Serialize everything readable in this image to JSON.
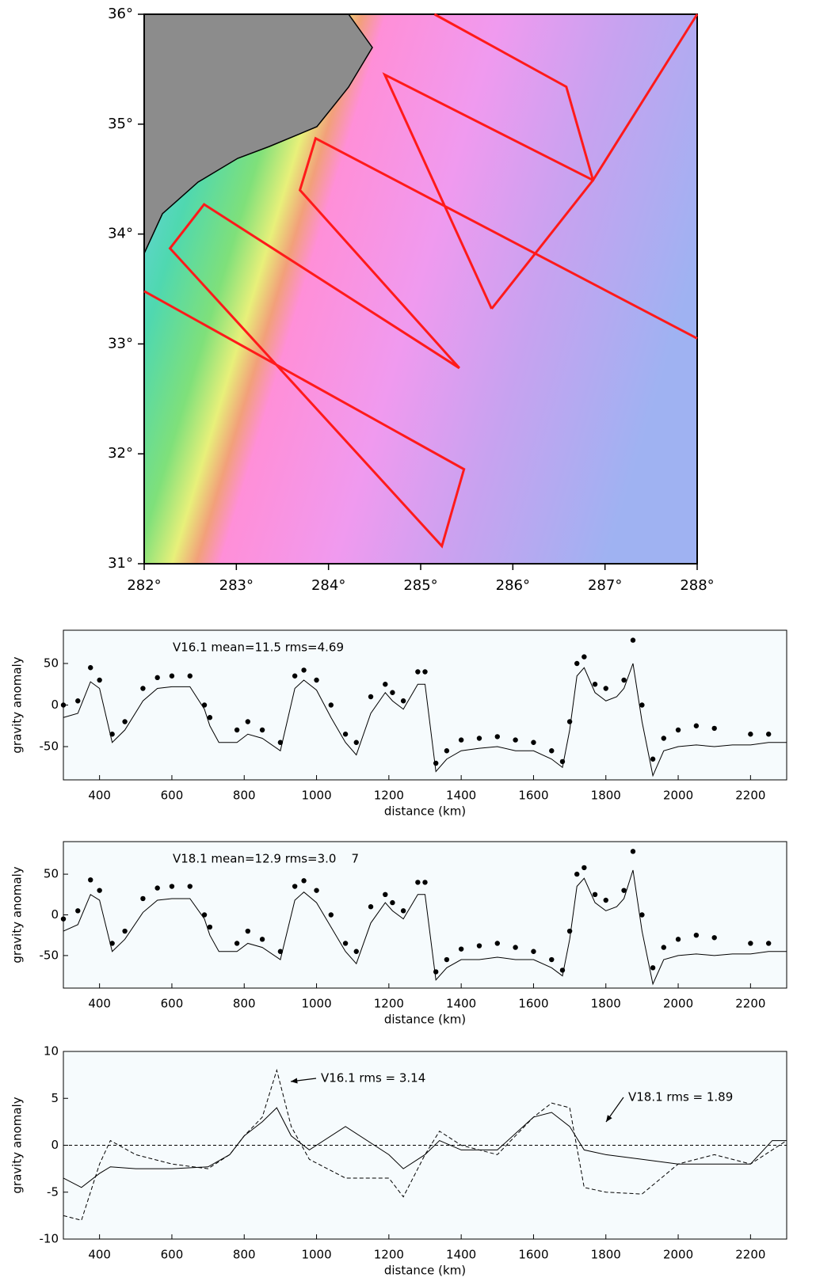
{
  "chart_data": [
    {
      "type": "map",
      "xlim": [
        282,
        288
      ],
      "ylim": [
        31,
        36
      ],
      "xticks": [
        {
          "value": 282,
          "label": "282°"
        },
        {
          "value": 283,
          "label": "283°"
        },
        {
          "value": 284,
          "label": "284°"
        },
        {
          "value": 285,
          "label": "285°"
        },
        {
          "value": 286,
          "label": "286°"
        },
        {
          "value": 287,
          "label": "287°"
        },
        {
          "value": 288,
          "label": "288°"
        }
      ],
      "yticks": [
        {
          "value": 31,
          "label": "31°"
        },
        {
          "value": 32,
          "label": "32°"
        },
        {
          "value": 33,
          "label": "33°"
        },
        {
          "value": 34,
          "label": "34°"
        },
        {
          "value": 35,
          "label": "35°"
        },
        {
          "value": 36,
          "label": "36°"
        }
      ],
      "track_color": "#ff1a1a",
      "tracks": [
        {
          "x": [
            282.0,
            285.47,
            285.23,
            282.28,
            282.65,
            285.42
          ],
          "y": [
            33.48,
            31.86,
            31.16,
            33.87,
            34.27,
            32.78
          ]
        },
        {
          "x": [
            285.42,
            283.69,
            283.86,
            288.0
          ],
          "y": [
            32.78,
            34.4,
            34.87,
            33.05
          ]
        },
        {
          "x": [
            285.77,
            284.61,
            286.87,
            288.0
          ],
          "y": [
            33.32,
            35.45,
            34.49,
            36.0
          ]
        },
        {
          "x": [
            285.15,
            286.58,
            286.87,
            285.77
          ],
          "y": [
            36.0,
            35.34,
            34.49,
            33.32
          ]
        }
      ]
    },
    {
      "type": "line",
      "text": "V16.1 mean=11.5 rms=4.69",
      "xlabel": "distance (km)",
      "ylabel": "gravity anomaly",
      "xlim": [
        300,
        2300
      ],
      "ylim": [
        -90,
        90
      ],
      "xticks": [
        400,
        600,
        800,
        1000,
        1200,
        1400,
        1600,
        1800,
        2000,
        2200
      ],
      "yticks": [
        -50,
        0,
        50
      ],
      "x": [
        300,
        340,
        375,
        400,
        435,
        470,
        520,
        560,
        600,
        650,
        690,
        705,
        730,
        780,
        810,
        850,
        900,
        940,
        965,
        1000,
        1040,
        1080,
        1110,
        1150,
        1190,
        1210,
        1240,
        1280,
        1300,
        1330,
        1360,
        1400,
        1450,
        1500,
        1550,
        1600,
        1650,
        1680,
        1700,
        1720,
        1740,
        1770,
        1800,
        1830,
        1850,
        1875,
        1900,
        1930,
        1960,
        2000,
        2050,
        2100,
        2150,
        2200,
        2250,
        2300
      ],
      "series": [
        {
          "style": "dots",
          "color": "#000000",
          "values": [
            0,
            5,
            45,
            30,
            -35,
            -20,
            20,
            33,
            35,
            35,
            0,
            -15,
            null,
            -30,
            -20,
            -30,
            -45,
            35,
            42,
            30,
            0,
            -35,
            -45,
            10,
            25,
            15,
            5,
            40,
            40,
            -70,
            -55,
            -42,
            -40,
            -38,
            -42,
            -45,
            -55,
            -68,
            -20,
            50,
            58,
            25,
            20,
            null,
            30,
            78,
            0,
            -65,
            -40,
            -30,
            -25,
            -28,
            null,
            -35,
            -35,
            null
          ]
        },
        {
          "style": "solid",
          "color": "#000000",
          "values": [
            -15,
            -10,
            28,
            20,
            -45,
            -30,
            5,
            20,
            22,
            22,
            -5,
            -25,
            -45,
            -45,
            -35,
            -40,
            -55,
            20,
            30,
            18,
            -15,
            -45,
            -60,
            -10,
            15,
            5,
            -5,
            25,
            25,
            -80,
            -65,
            -55,
            -52,
            -50,
            -55,
            -55,
            -65,
            -75,
            -30,
            35,
            45,
            15,
            5,
            10,
            20,
            50,
            -20,
            -85,
            -55,
            -50,
            -48,
            -50,
            -48,
            -48,
            -45,
            -45
          ]
        }
      ]
    },
    {
      "type": "line",
      "text": "V18.1 mean=12.9 rms=3.0    7",
      "xlabel": "distance (km)",
      "ylabel": "gravity anomaly",
      "xlim": [
        300,
        2300
      ],
      "ylim": [
        -90,
        90
      ],
      "xticks": [
        400,
        600,
        800,
        1000,
        1200,
        1400,
        1600,
        1800,
        2000,
        2200
      ],
      "yticks": [
        -50,
        0,
        50
      ],
      "x": [
        300,
        340,
        375,
        400,
        435,
        470,
        520,
        560,
        600,
        650,
        690,
        705,
        730,
        780,
        810,
        850,
        900,
        940,
        965,
        1000,
        1040,
        1080,
        1110,
        1150,
        1190,
        1210,
        1240,
        1280,
        1300,
        1330,
        1360,
        1400,
        1450,
        1500,
        1550,
        1600,
        1650,
        1680,
        1700,
        1720,
        1740,
        1770,
        1800,
        1830,
        1850,
        1875,
        1900,
        1930,
        1960,
        2000,
        2050,
        2100,
        2150,
        2200,
        2250,
        2300
      ],
      "series": [
        {
          "style": "dots",
          "color": "#000000",
          "values": [
            -5,
            5,
            43,
            30,
            -35,
            -20,
            20,
            33,
            35,
            35,
            0,
            -15,
            null,
            -35,
            -20,
            -30,
            -45,
            35,
            42,
            30,
            0,
            -35,
            -45,
            10,
            25,
            15,
            5,
            40,
            40,
            -70,
            -55,
            -42,
            -38,
            -35,
            -40,
            -45,
            -55,
            -68,
            -20,
            50,
            58,
            25,
            18,
            null,
            30,
            78,
            0,
            -65,
            -40,
            -30,
            -25,
            -28,
            null,
            -35,
            -35,
            null
          ]
        },
        {
          "style": "solid",
          "color": "#000000",
          "values": [
            -20,
            -12,
            25,
            18,
            -45,
            -30,
            3,
            18,
            20,
            20,
            -5,
            -25,
            -45,
            -45,
            -35,
            -40,
            -55,
            18,
            28,
            15,
            -15,
            -45,
            -60,
            -10,
            15,
            5,
            -5,
            25,
            25,
            -80,
            -65,
            -55,
            -55,
            -52,
            -55,
            -55,
            -65,
            -75,
            -30,
            35,
            45,
            15,
            5,
            10,
            20,
            55,
            -20,
            -85,
            -55,
            -50,
            -48,
            -50,
            -48,
            -48,
            -45,
            -45
          ]
        }
      ]
    },
    {
      "type": "line",
      "xlabel": "distance (km)",
      "ylabel": "gravity anomaly",
      "xlim": [
        300,
        2300
      ],
      "ylim": [
        -10,
        10
      ],
      "xticks": [
        400,
        600,
        800,
        1000,
        1200,
        1400,
        1600,
        1800,
        2000,
        2200
      ],
      "yticks": [
        -10,
        -5,
        0,
        5,
        10
      ],
      "annotations": [
        "V16.1 rms = 3.14",
        "V18.1 rms = 1.89"
      ],
      "x": [
        300,
        350,
        400,
        430,
        500,
        600,
        700,
        760,
        800,
        850,
        890,
        930,
        980,
        1080,
        1200,
        1240,
        1300,
        1340,
        1400,
        1500,
        1600,
        1650,
        1700,
        1740,
        1800,
        1900,
        2000,
        2100,
        2200,
        2260,
        2300
      ],
      "series": [
        {
          "style": "solid",
          "color": "#000000",
          "values": [
            -3.5,
            -4.5,
            -3,
            -2.3,
            -2.5,
            -2.5,
            -2.3,
            -1,
            1,
            2.5,
            4,
            1,
            -0.5,
            2,
            -1,
            -2.5,
            -1,
            0.5,
            -0.5,
            -0.5,
            3,
            3.5,
            2,
            -0.5,
            -1,
            -1.5,
            -2,
            -2,
            -2,
            0.5,
            0.5
          ]
        },
        {
          "style": "dashed",
          "color": "#000000",
          "values": [
            -7.5,
            -8,
            -2,
            0.5,
            -1,
            -2,
            -2.5,
            -1,
            1,
            3,
            8,
            2,
            -1.5,
            -3.5,
            -3.5,
            -5.5,
            -1,
            1.5,
            0,
            -1,
            3,
            4.5,
            4,
            -4.5,
            -5,
            -5.2,
            -2,
            -1,
            -2,
            -0.5,
            0.5
          ]
        }
      ]
    }
  ]
}
